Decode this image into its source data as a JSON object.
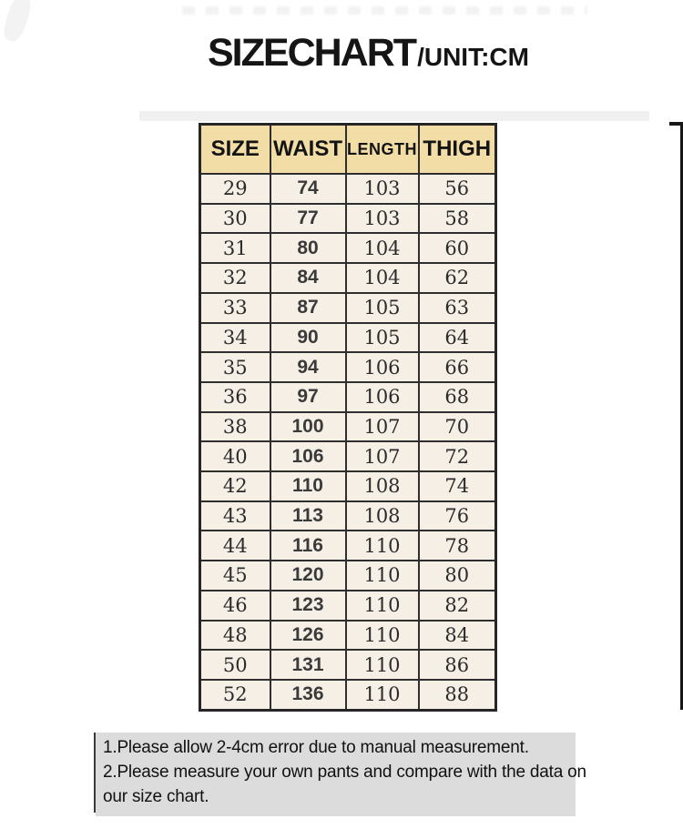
{
  "title": {
    "main": "SIZECHART",
    "suffix": "/UNIT:CM"
  },
  "chart_data": {
    "type": "table",
    "title": "SIZECHART/UNIT:CM",
    "unit": "CM",
    "headers": [
      "SIZE",
      "WAIST",
      "LENGTH",
      "THIGH"
    ],
    "rows": [
      [
        "29",
        "74",
        "103",
        "56"
      ],
      [
        "30",
        "77",
        "103",
        "58"
      ],
      [
        "31",
        "80",
        "104",
        "60"
      ],
      [
        "32",
        "84",
        "104",
        "62"
      ],
      [
        "33",
        "87",
        "105",
        "63"
      ],
      [
        "34",
        "90",
        "105",
        "64"
      ],
      [
        "35",
        "94",
        "106",
        "66"
      ],
      [
        "36",
        "97",
        "106",
        "68"
      ],
      [
        "38",
        "100",
        "107",
        "70"
      ],
      [
        "40",
        "106",
        "107",
        "72"
      ],
      [
        "42",
        "110",
        "108",
        "74"
      ],
      [
        "43",
        "113",
        "108",
        "76"
      ],
      [
        "44",
        "116",
        "110",
        "78"
      ],
      [
        "45",
        "120",
        "110",
        "80"
      ],
      [
        "46",
        "123",
        "110",
        "82"
      ],
      [
        "48",
        "126",
        "110",
        "84"
      ],
      [
        "50",
        "131",
        "110",
        "86"
      ],
      [
        "52",
        "136",
        "110",
        "88"
      ]
    ]
  },
  "notes": {
    "line1": "1.Please allow 2-4cm error due to manual measurement.",
    "line2": "2.Please measure your own pants and compare with the data on",
    "line3": "our size chart."
  },
  "colors": {
    "header_bg": "#f2dda6",
    "cell_bg": "#f5efe6",
    "table_border": "#2e2e2e",
    "notes_bg": "#dcdcdc",
    "text": "#141414"
  }
}
